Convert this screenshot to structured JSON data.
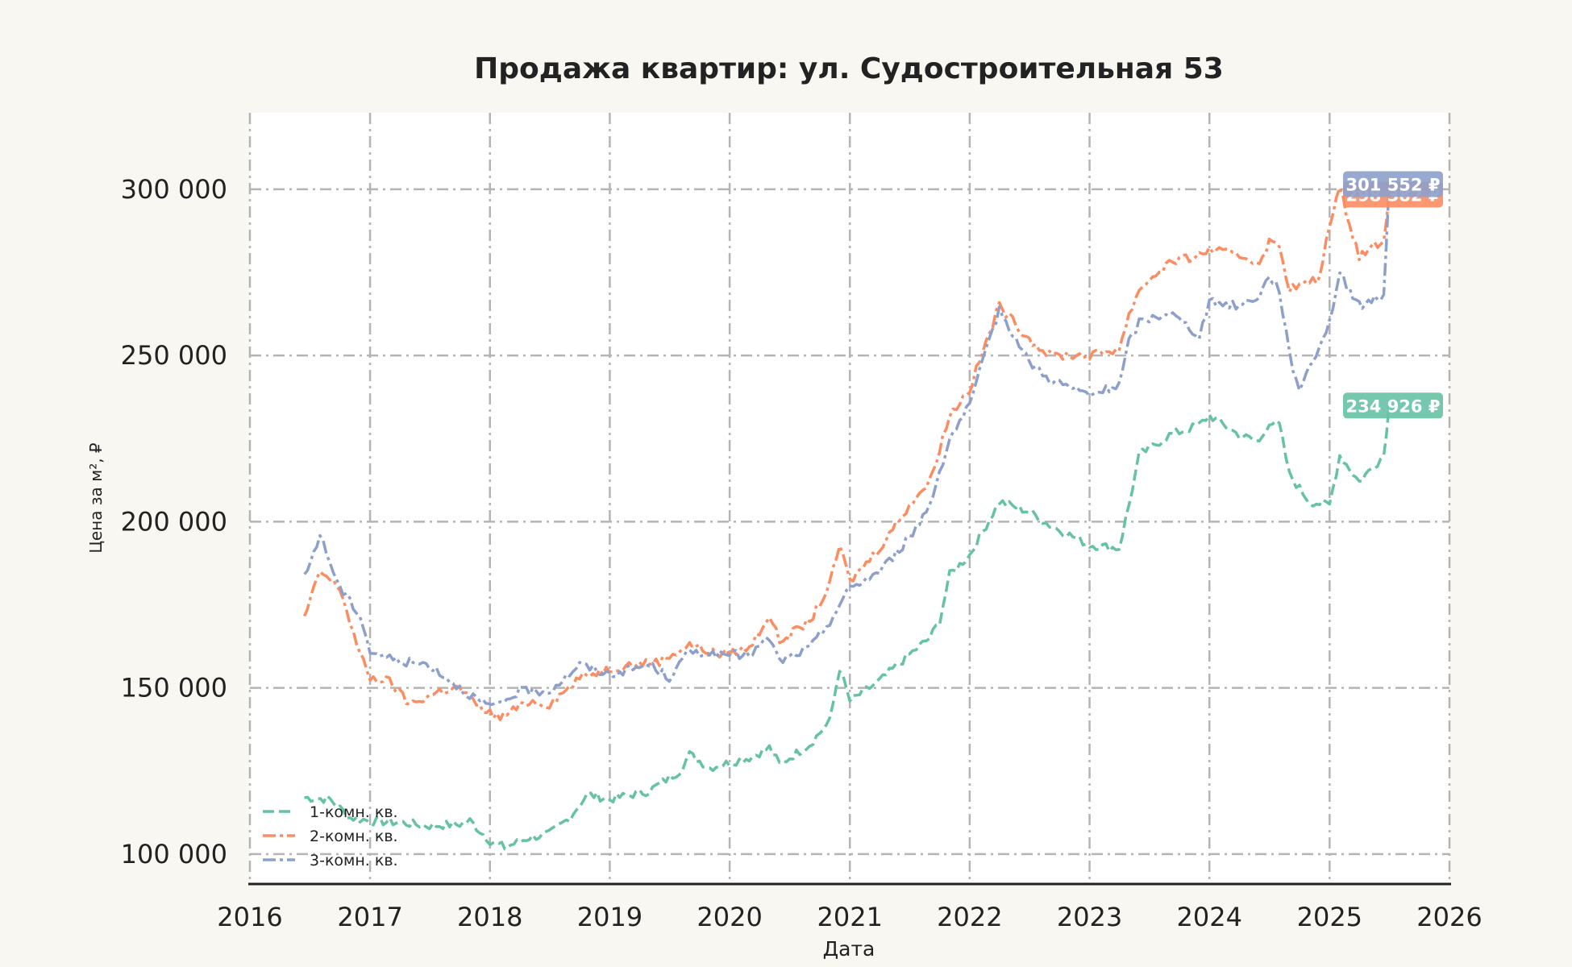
{
  "chart_data": {
    "type": "line",
    "title": "Продажа квартир: ул. Судостроительная 53",
    "xlabel": "Дата",
    "ylabel": "Цена за м², ₽",
    "xlim": [
      "2016-01-01",
      "2026-01-01"
    ],
    "ylim": [
      91000,
      323000
    ],
    "x_ticks": [
      "2016",
      "2017",
      "2018",
      "2019",
      "2020",
      "2021",
      "2022",
      "2023",
      "2024",
      "2025",
      "2026"
    ],
    "y_ticks": [
      {
        "value": 100000,
        "label": "100 000"
      },
      {
        "value": 150000,
        "label": "150 000"
      },
      {
        "value": 200000,
        "label": "200 000"
      },
      {
        "value": 250000,
        "label": "250 000"
      },
      {
        "value": 300000,
        "label": "300 000"
      }
    ],
    "grid": true,
    "legend_position": "bottom-left",
    "series": [
      {
        "name": "1-комн. кв.",
        "color": "#66c2a5",
        "dash": "dashed",
        "end_label": "234 926 ₽",
        "end_value": 234926,
        "points": [
          [
            "2016-06-15",
            117000
          ],
          [
            "2016-09-01",
            116500
          ],
          [
            "2016-11-01",
            111000
          ],
          [
            "2017-01-01",
            110000
          ],
          [
            "2017-04-01",
            109500
          ],
          [
            "2017-07-01",
            108500
          ],
          [
            "2017-10-01",
            109000
          ],
          [
            "2017-11-01",
            110000
          ],
          [
            "2018-01-01",
            104000
          ],
          [
            "2018-02-15",
            102000
          ],
          [
            "2018-05-01",
            105000
          ],
          [
            "2018-07-01",
            106000
          ],
          [
            "2018-09-01",
            111000
          ],
          [
            "2018-10-25",
            118000
          ],
          [
            "2019-01-01",
            116500
          ],
          [
            "2019-05-01",
            119000
          ],
          [
            "2019-08-01",
            125000
          ],
          [
            "2019-09-01",
            130000
          ],
          [
            "2019-11-01",
            126000
          ],
          [
            "2020-03-01",
            129000
          ],
          [
            "2020-05-01",
            132000
          ],
          [
            "2020-06-01",
            127000
          ],
          [
            "2020-09-01",
            133000
          ],
          [
            "2020-11-01",
            140000
          ],
          [
            "2020-12-01",
            156000
          ],
          [
            "2021-01-01",
            146000
          ],
          [
            "2021-04-01",
            152000
          ],
          [
            "2021-07-01",
            160000
          ],
          [
            "2021-09-01",
            165000
          ],
          [
            "2021-10-01",
            170000
          ],
          [
            "2021-11-01",
            184000
          ],
          [
            "2022-01-01",
            190000
          ],
          [
            "2022-04-01",
            206000
          ],
          [
            "2022-07-01",
            203000
          ],
          [
            "2022-09-01",
            199000
          ],
          [
            "2023-01-01",
            193000
          ],
          [
            "2023-04-01",
            192000
          ],
          [
            "2023-05-01",
            205000
          ],
          [
            "2023-06-01",
            220000
          ],
          [
            "2023-09-01",
            226000
          ],
          [
            "2023-12-01",
            229000
          ],
          [
            "2024-01-01",
            232000
          ],
          [
            "2024-04-01",
            226000
          ],
          [
            "2024-06-01",
            224000
          ],
          [
            "2024-07-01",
            230000
          ],
          [
            "2024-08-01",
            229000
          ],
          [
            "2024-09-01",
            214000
          ],
          [
            "2024-11-01",
            206000
          ],
          [
            "2025-01-01",
            205000
          ],
          [
            "2025-02-01",
            220000
          ],
          [
            "2025-04-01",
            212000
          ],
          [
            "2025-06-15",
            220000
          ],
          [
            "2025-07-01",
            234926
          ]
        ]
      },
      {
        "name": "2-комн. кв.",
        "color": "#fc8d62",
        "dash": "dashdot",
        "end_label": "298 382 ₽",
        "end_value": 298382,
        "points": [
          [
            "2016-06-15",
            171000
          ],
          [
            "2016-08-01",
            185000
          ],
          [
            "2016-10-01",
            180000
          ],
          [
            "2016-12-01",
            160000
          ],
          [
            "2017-01-01",
            153000
          ],
          [
            "2017-03-01",
            152000
          ],
          [
            "2017-05-01",
            145000
          ],
          [
            "2017-08-01",
            149000
          ],
          [
            "2017-10-01",
            150000
          ],
          [
            "2017-12-01",
            144000
          ],
          [
            "2018-02-01",
            141000
          ],
          [
            "2018-05-01",
            146000
          ],
          [
            "2018-07-01",
            145000
          ],
          [
            "2018-10-01",
            153000
          ],
          [
            "2018-12-01",
            155000
          ],
          [
            "2019-03-01",
            157000
          ],
          [
            "2019-06-01",
            158000
          ],
          [
            "2019-09-01",
            163000
          ],
          [
            "2019-12-01",
            160000
          ],
          [
            "2020-03-01",
            162000
          ],
          [
            "2020-05-01",
            172000
          ],
          [
            "2020-06-01",
            164000
          ],
          [
            "2020-09-01",
            170000
          ],
          [
            "2020-11-01",
            181000
          ],
          [
            "2020-12-01",
            193000
          ],
          [
            "2021-01-01",
            182000
          ],
          [
            "2021-04-01",
            192000
          ],
          [
            "2021-07-01",
            205000
          ],
          [
            "2021-09-01",
            212000
          ],
          [
            "2021-10-01",
            222000
          ],
          [
            "2021-11-01",
            232000
          ],
          [
            "2022-01-01",
            240000
          ],
          [
            "2022-04-01",
            265000
          ],
          [
            "2022-07-01",
            255000
          ],
          [
            "2022-09-01",
            250000
          ],
          [
            "2023-01-01",
            250000
          ],
          [
            "2023-04-01",
            252000
          ],
          [
            "2023-05-01",
            262000
          ],
          [
            "2023-06-01",
            270000
          ],
          [
            "2023-09-01",
            278000
          ],
          [
            "2023-12-01",
            280000
          ],
          [
            "2024-01-01",
            282000
          ],
          [
            "2024-04-01",
            280000
          ],
          [
            "2024-06-01",
            278000
          ],
          [
            "2024-07-01",
            284000
          ],
          [
            "2024-08-01",
            283000
          ],
          [
            "2024-09-01",
            270000
          ],
          [
            "2024-12-01",
            273000
          ],
          [
            "2025-01-01",
            290000
          ],
          [
            "2025-02-01",
            300000
          ],
          [
            "2025-04-01",
            280000
          ],
          [
            "2025-06-15",
            285000
          ],
          [
            "2025-07-01",
            298382
          ]
        ]
      },
      {
        "name": "3-комн. кв.",
        "color": "#8da0cb",
        "dash": "dashdot",
        "end_label": "301 552 ₽",
        "end_value": 301552,
        "points": [
          [
            "2016-06-15",
            183000
          ],
          [
            "2016-08-01",
            196000
          ],
          [
            "2016-10-01",
            180000
          ],
          [
            "2016-12-01",
            172000
          ],
          [
            "2017-01-01",
            161000
          ],
          [
            "2017-04-01",
            158000
          ],
          [
            "2017-07-01",
            157000
          ],
          [
            "2017-10-01",
            150000
          ],
          [
            "2017-12-01",
            146000
          ],
          [
            "2018-01-15",
            144000
          ],
          [
            "2018-04-01",
            149000
          ],
          [
            "2018-07-01",
            149000
          ],
          [
            "2018-10-01",
            157000
          ],
          [
            "2019-01-01",
            154000
          ],
          [
            "2019-05-01",
            157000
          ],
          [
            "2019-07-01",
            153000
          ],
          [
            "2019-09-01",
            161000
          ],
          [
            "2019-12-01",
            160000
          ],
          [
            "2020-03-01",
            160000
          ],
          [
            "2020-05-01",
            165000
          ],
          [
            "2020-06-01",
            158000
          ],
          [
            "2020-09-01",
            162000
          ],
          [
            "2020-11-01",
            170000
          ],
          [
            "2021-01-01",
            180000
          ],
          [
            "2021-04-01",
            185000
          ],
          [
            "2021-07-01",
            195000
          ],
          [
            "2021-09-01",
            205000
          ],
          [
            "2021-10-01",
            215000
          ],
          [
            "2021-11-01",
            225000
          ],
          [
            "2022-01-01",
            235000
          ],
          [
            "2022-04-01",
            264000
          ],
          [
            "2022-07-01",
            248000
          ],
          [
            "2022-09-01",
            243000
          ],
          [
            "2023-01-01",
            238000
          ],
          [
            "2023-04-01",
            241000
          ],
          [
            "2023-05-01",
            254000
          ],
          [
            "2023-06-01",
            260000
          ],
          [
            "2023-09-01",
            263000
          ],
          [
            "2023-12-01",
            256000
          ],
          [
            "2024-01-01",
            266000
          ],
          [
            "2024-04-01",
            265000
          ],
          [
            "2024-06-01",
            268000
          ],
          [
            "2024-07-01",
            274000
          ],
          [
            "2024-08-01",
            270000
          ],
          [
            "2024-09-01",
            250000
          ],
          [
            "2024-10-01",
            240000
          ],
          [
            "2024-12-01",
            253000
          ],
          [
            "2025-01-01",
            260000
          ],
          [
            "2025-02-01",
            275000
          ],
          [
            "2025-04-01",
            265000
          ],
          [
            "2025-06-15",
            268000
          ],
          [
            "2025-07-01",
            301552
          ]
        ]
      }
    ]
  }
}
